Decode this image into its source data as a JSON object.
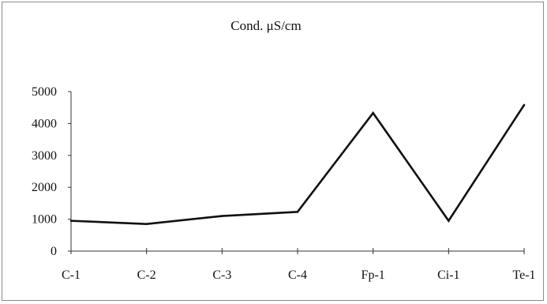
{
  "chart_data": {
    "type": "line",
    "title": "Cond. μS/cm",
    "xlabel": "",
    "ylabel": "",
    "categories": [
      "C-1",
      "C-2",
      "C-3",
      "C-4",
      "Fp-1",
      "Ci-1",
      "Te-1"
    ],
    "series": [
      {
        "values": [
          950,
          850,
          1100,
          1230,
          4330,
          950,
          4580
        ]
      }
    ],
    "ylim": [
      0,
      5000
    ],
    "yticks": [
      "0",
      "1000",
      "2000",
      "3000",
      "4000",
      "5000"
    ],
    "grid": false,
    "legend": "none",
    "line_color": "#111111"
  }
}
